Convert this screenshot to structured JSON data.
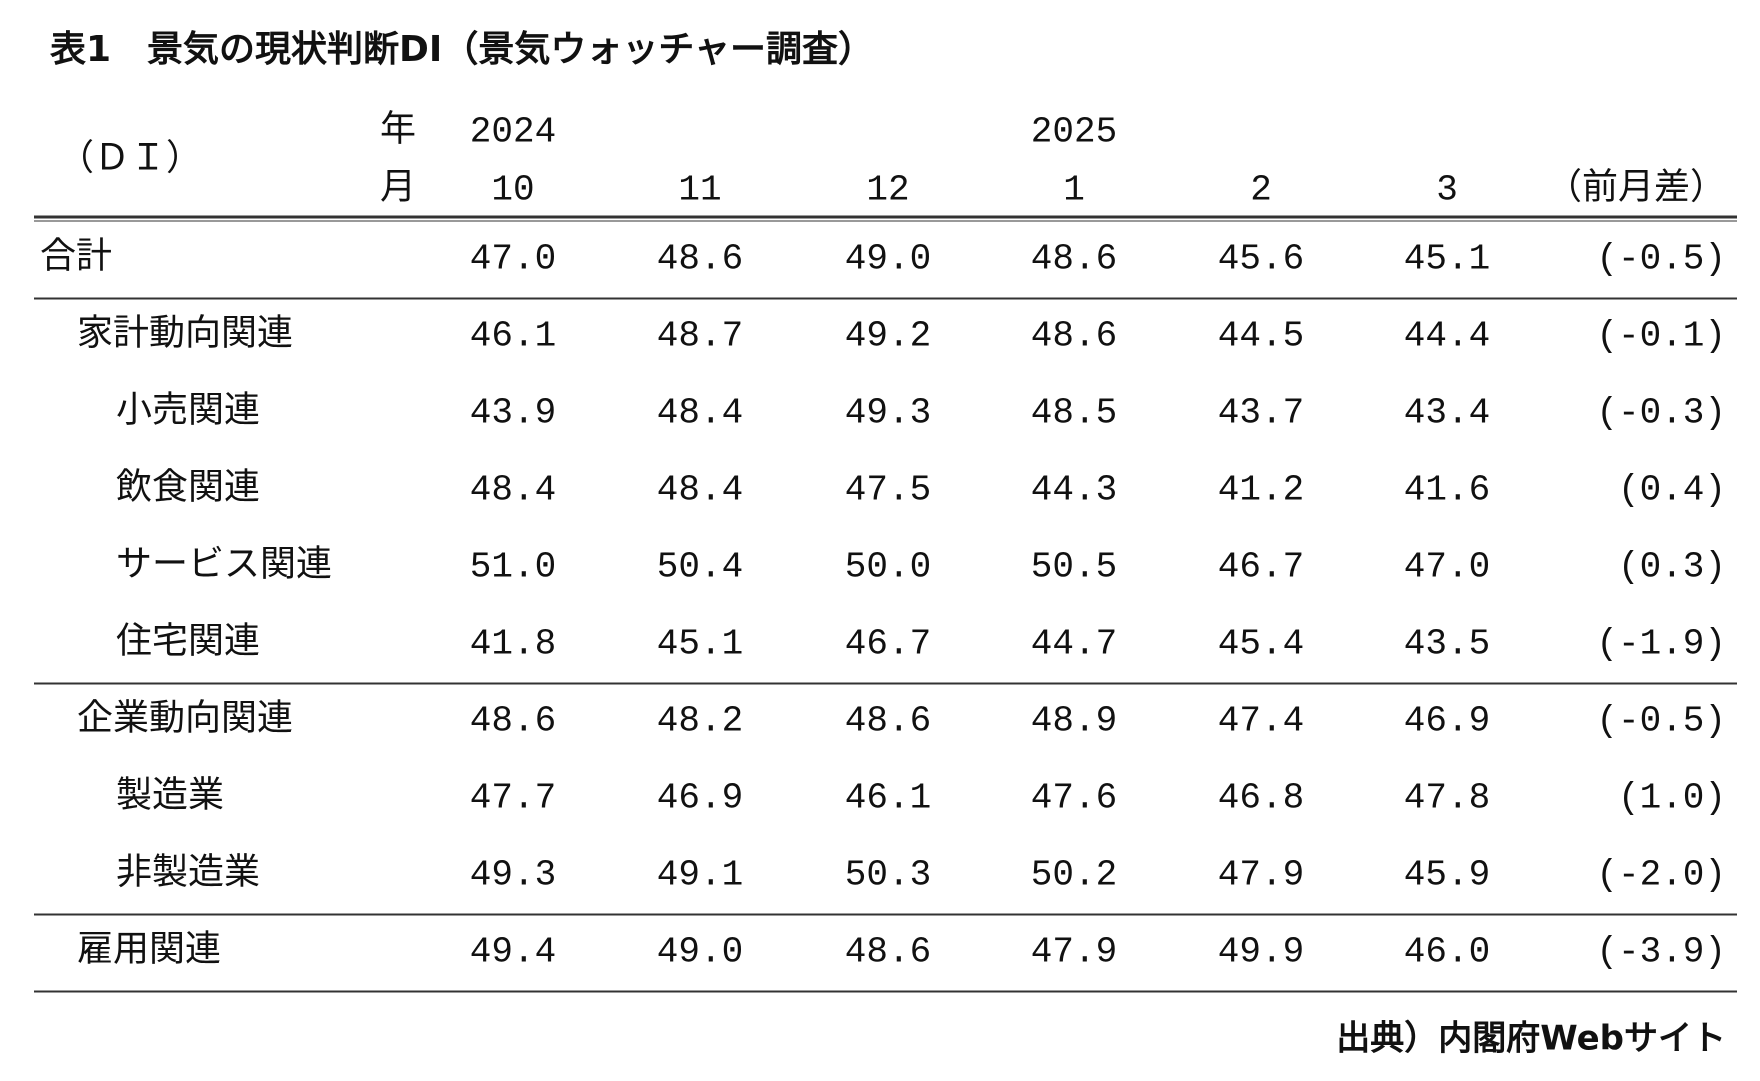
{
  "title": "表1　景気の現状判断DI（景気ウォッチャー調査）",
  "header": {
    "unit": "（ＤＩ）",
    "year_label": "年",
    "month_label": "月",
    "years": [
      "2024",
      "2025"
    ],
    "months": [
      "10",
      "11",
      "12",
      "1",
      "2",
      "3"
    ],
    "diff_label": "（前月差）"
  },
  "total": {
    "label": "合計",
    "values": [
      "47.0",
      "48.6",
      "49.0",
      "48.6",
      "45.6",
      "45.1"
    ],
    "diff": "(-0.5)"
  },
  "groups": [
    {
      "label": "家計動向関連",
      "values": [
        "46.1",
        "48.7",
        "49.2",
        "48.6",
        "44.5",
        "44.4"
      ],
      "diff": "(-0.1)",
      "items": [
        {
          "label": "小売関連",
          "values": [
            "43.9",
            "48.4",
            "49.3",
            "48.5",
            "43.7",
            "43.4"
          ],
          "diff": "(-0.3)"
        },
        {
          "label": "飲食関連",
          "values": [
            "48.4",
            "48.4",
            "47.5",
            "44.3",
            "41.2",
            "41.6"
          ],
          "diff": "(0.4)"
        },
        {
          "label": "サービス関連",
          "values": [
            "51.0",
            "50.4",
            "50.0",
            "50.5",
            "46.7",
            "47.0"
          ],
          "diff": "(0.3)"
        },
        {
          "label": "住宅関連",
          "values": [
            "41.8",
            "45.1",
            "46.7",
            "44.7",
            "45.4",
            "43.5"
          ],
          "diff": "(-1.9)"
        }
      ]
    },
    {
      "label": "企業動向関連",
      "values": [
        "48.6",
        "48.2",
        "48.6",
        "48.9",
        "47.4",
        "46.9"
      ],
      "diff": "(-0.5)",
      "items": [
        {
          "label": "製造業",
          "values": [
            "47.7",
            "46.9",
            "46.1",
            "47.6",
            "46.8",
            "47.8"
          ],
          "diff": "(1.0)"
        },
        {
          "label": "非製造業",
          "values": [
            "49.3",
            "49.1",
            "50.3",
            "50.2",
            "47.9",
            "45.9"
          ],
          "diff": "(-2.0)"
        }
      ]
    },
    {
      "label": "雇用関連",
      "values": [
        "49.4",
        "49.0",
        "48.6",
        "47.9",
        "49.9",
        "46.0"
      ],
      "diff": "(-3.9)",
      "items": []
    }
  ],
  "source": "出典）内閣府Webサイト"
}
